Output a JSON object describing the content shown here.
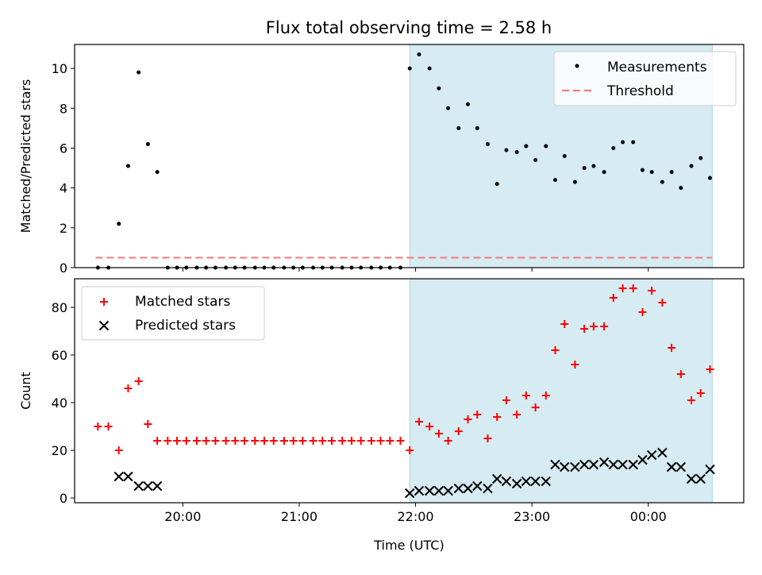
{
  "figure_title": "Flux total observing time = 2.58 h",
  "colors": {
    "observing_window": "#add8e6",
    "threshold": "#f08080",
    "matched": "#ff0000",
    "predicted": "#000000",
    "measurements": "#000000"
  },
  "chart_data": [
    {
      "id": "top",
      "type": "scatter",
      "title": "Flux total observing time = 2.58 h",
      "xlabel": "",
      "ylabel": "Matched/Predicted stars",
      "xlim": [
        19.07,
        24.82
      ],
      "ylim": [
        0,
        11.2
      ],
      "yticks": [
        0,
        2,
        4,
        6,
        8,
        10
      ],
      "xticks": [
        20,
        21,
        22,
        23,
        24
      ],
      "xtick_labels_shown": false,
      "grid": false,
      "legend": {
        "placement": "top-right",
        "entries": [
          "Measurements",
          "Threshold"
        ]
      },
      "shaded_region": {
        "x": [
          21.95,
          24.55
        ]
      },
      "threshold": {
        "name": "Threshold",
        "y": 0.5,
        "x": [
          19.25,
          24.55
        ],
        "style": "dashed"
      },
      "series": [
        {
          "name": "Measurements",
          "marker": "dot",
          "x": [
            19.27,
            19.36,
            19.45,
            19.53,
            19.62,
            19.7,
            19.78,
            19.87,
            19.95,
            20.03,
            20.12,
            20.2,
            20.28,
            20.37,
            20.45,
            20.53,
            20.62,
            20.7,
            20.78,
            20.87,
            20.95,
            21.03,
            21.12,
            21.2,
            21.28,
            21.37,
            21.45,
            21.53,
            21.62,
            21.7,
            21.78,
            21.87,
            21.95,
            22.03,
            22.12,
            22.2,
            22.28,
            22.37,
            22.45,
            22.53,
            22.62,
            22.7,
            22.78,
            22.87,
            22.95,
            23.03,
            23.12,
            23.2,
            23.28,
            23.37,
            23.45,
            23.53,
            23.62,
            23.7,
            23.78,
            23.87,
            23.95,
            24.03,
            24.12,
            24.2,
            24.28,
            24.37,
            24.45,
            24.53
          ],
          "y": [
            0,
            0,
            2.2,
            5.1,
            9.8,
            6.2,
            4.8,
            0,
            0,
            0,
            0,
            0,
            0,
            0,
            0,
            0,
            0,
            0,
            0,
            0,
            0,
            0,
            0,
            0,
            0,
            0,
            0,
            0,
            0,
            0,
            0,
            0,
            10,
            10.7,
            10,
            9,
            8,
            7,
            8.2,
            7,
            6.2,
            4.2,
            5.9,
            5.8,
            6.1,
            5.4,
            6.1,
            4.4,
            5.6,
            4.3,
            5.0,
            5.1,
            4.8,
            6.0,
            6.3,
            6.3,
            4.9,
            4.8,
            4.3,
            4.8,
            4.0,
            5.1,
            5.5,
            4.5
          ]
        }
      ]
    },
    {
      "id": "bottom",
      "type": "scatter",
      "title": "",
      "xlabel": "Time (UTC)",
      "ylabel": "Count",
      "xlim": [
        19.07,
        24.82
      ],
      "ylim": [
        -2,
        92
      ],
      "yticks": [
        0,
        20,
        40,
        60,
        80
      ],
      "xticks": [
        20,
        21,
        22,
        23,
        24
      ],
      "xtick_labels": [
        "20:00",
        "21:00",
        "22:00",
        "23:00",
        "00:00"
      ],
      "grid": false,
      "legend": {
        "placement": "top-left",
        "entries": [
          "Matched stars",
          "Predicted stars"
        ]
      },
      "shaded_region": {
        "x": [
          21.95,
          24.55
        ]
      },
      "series": [
        {
          "name": "Matched stars",
          "marker": "plus",
          "x": [
            19.27,
            19.36,
            19.45,
            19.53,
            19.62,
            19.7,
            19.78,
            19.87,
            19.95,
            20.03,
            20.12,
            20.2,
            20.28,
            20.37,
            20.45,
            20.53,
            20.62,
            20.7,
            20.78,
            20.87,
            20.95,
            21.03,
            21.12,
            21.2,
            21.28,
            21.37,
            21.45,
            21.53,
            21.62,
            21.7,
            21.78,
            21.87,
            21.95,
            22.03,
            22.12,
            22.2,
            22.28,
            22.37,
            22.45,
            22.53,
            22.62,
            22.7,
            22.78,
            22.87,
            22.95,
            23.03,
            23.12,
            23.2,
            23.28,
            23.37,
            23.45,
            23.53,
            23.62,
            23.7,
            23.78,
            23.87,
            23.95,
            24.03,
            24.12,
            24.2,
            24.28,
            24.37,
            24.45,
            24.53
          ],
          "y": [
            30,
            30,
            20,
            46,
            49,
            31,
            24,
            24,
            24,
            24,
            24,
            24,
            24,
            24,
            24,
            24,
            24,
            24,
            24,
            24,
            24,
            24,
            24,
            24,
            24,
            24,
            24,
            24,
            24,
            24,
            24,
            24,
            20,
            32,
            30,
            27,
            24,
            28,
            33,
            35,
            25,
            34,
            41,
            35,
            43,
            38,
            43,
            62,
            73,
            56,
            71,
            72,
            72,
            84,
            88,
            88,
            78,
            87,
            82,
            63,
            52,
            41,
            44,
            54
          ]
        },
        {
          "name": "Predicted stars",
          "marker": "x",
          "x": [
            19.45,
            19.53,
            19.62,
            19.7,
            19.78,
            21.95,
            22.03,
            22.12,
            22.2,
            22.28,
            22.37,
            22.45,
            22.53,
            22.62,
            22.7,
            22.78,
            22.87,
            22.95,
            23.03,
            23.12,
            23.2,
            23.28,
            23.37,
            23.45,
            23.53,
            23.62,
            23.7,
            23.78,
            23.87,
            23.95,
            24.03,
            24.12,
            24.2,
            24.28,
            24.37,
            24.45,
            24.53
          ],
          "y": [
            9,
            9,
            5,
            5,
            5,
            2,
            3,
            3,
            3,
            3,
            4,
            4,
            5,
            4,
            8,
            7,
            6,
            7,
            7,
            7,
            14,
            13,
            13,
            14,
            14,
            15,
            14,
            14,
            14,
            16,
            18,
            19,
            13,
            13,
            8,
            8,
            12
          ]
        }
      ]
    }
  ]
}
